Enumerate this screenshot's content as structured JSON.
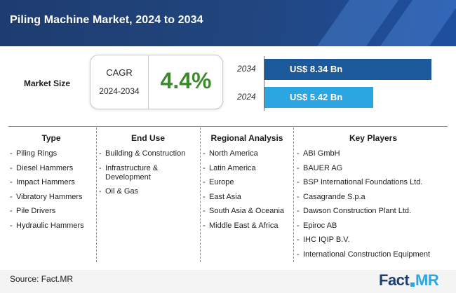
{
  "header": {
    "title": "Piling Machine Market, 2024 to 2034"
  },
  "market_size": {
    "label": "Market Size",
    "cagr_label": "CAGR",
    "cagr_period": "2024-2034",
    "cagr_value": "4.4%"
  },
  "chart_data": {
    "type": "bar",
    "orientation": "horizontal",
    "categories": [
      "2034",
      "2024"
    ],
    "values": [
      8.34,
      5.42
    ],
    "labels": [
      "US$ 8.34 Bn",
      "US$ 5.42 Bn"
    ],
    "colors": [
      "#1d5a9c",
      "#2ba6e0"
    ],
    "xlim": [
      0,
      8.34
    ]
  },
  "segments": [
    {
      "title": "Type",
      "items": [
        "Piling Rings",
        "Diesel Hammers",
        "Impact Hammers",
        "Vibratory Hammers",
        "Pile Drivers",
        "Hydraulic Hammers"
      ]
    },
    {
      "title": "End Use",
      "items": [
        "Building & Construction",
        "Infrastructure & Development",
        "Oil & Gas"
      ]
    },
    {
      "title": "Regional Analysis",
      "items": [
        "North America",
        "Latin America",
        "Europe",
        "East Asia",
        "South Asia & Oceania",
        "Middle East & Africa"
      ]
    },
    {
      "title": "Key Players",
      "items": [
        "ABI GmbH",
        "BAUER AG",
        "BSP International Foundations Ltd.",
        "Casagrande S.p.a",
        "Dawson Construction Plant Ltd.",
        "Epiroc AB",
        "IHC IQIP B.V.",
        "International Construction Equipment"
      ]
    }
  ],
  "footer": {
    "source": "Source: Fact.MR",
    "logo_left": "Fact",
    "logo_right": "MR"
  }
}
